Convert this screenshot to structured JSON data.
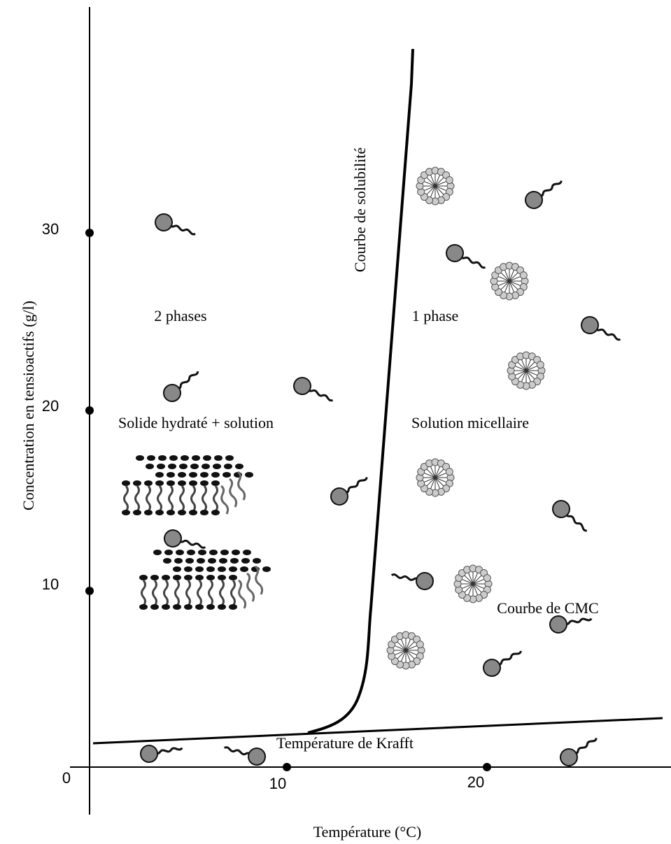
{
  "title": "Courbe de solubilité",
  "regions": {
    "left_top": "2 phases",
    "right_top": "1 phase",
    "left": "Solide hydraté + solution",
    "right": "Solution micellaire",
    "cmc": "Courbe de CMC",
    "krafft": "Température  de Krafft"
  },
  "y_axis": {
    "title": "Concentration en tensioactifs (g/l)",
    "ticks": [
      "30",
      "20",
      "10"
    ]
  },
  "x_axis": {
    "title": "Température (°C)",
    "origin": "0",
    "ticks": [
      "10",
      "20"
    ]
  }
}
